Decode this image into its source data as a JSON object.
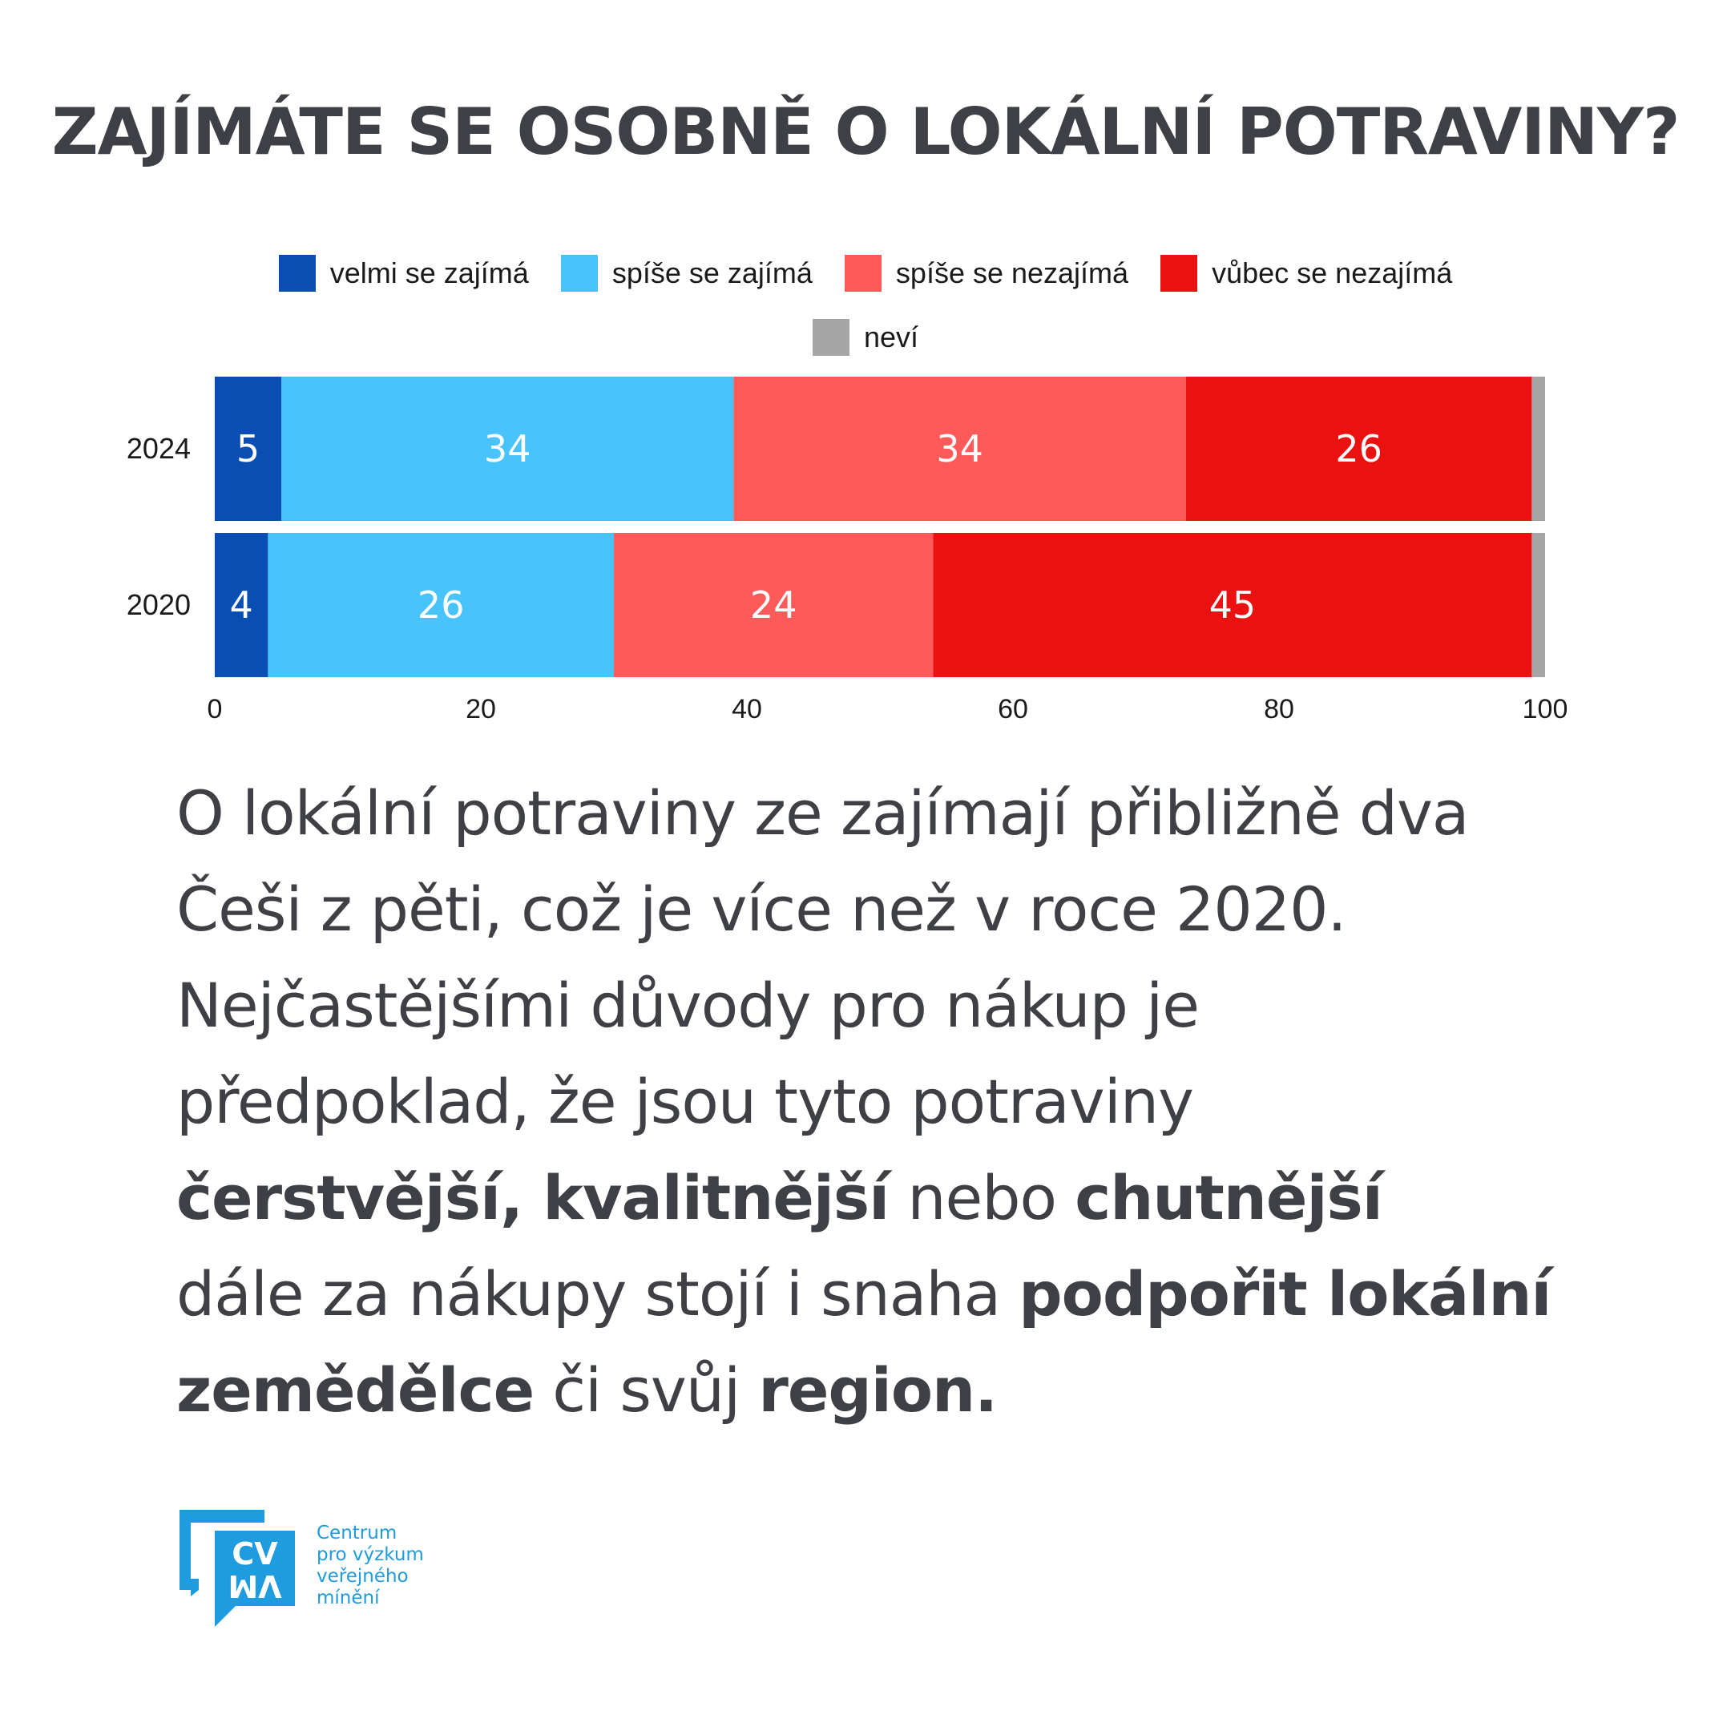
{
  "title": "ZAJÍMÁTE SE OSOBNĚ O LOKÁLNÍ POTRAVINY?",
  "chart_data": {
    "type": "bar",
    "orientation": "horizontal",
    "stacked": true,
    "categories": [
      "2024",
      "2020"
    ],
    "series": [
      {
        "name": "velmi se zajímá",
        "color": "#0a4db3",
        "values": [
          5,
          4
        ]
      },
      {
        "name": "spíše se zajímá",
        "color": "#48c3fb",
        "values": [
          34,
          26
        ]
      },
      {
        "name": "spíše se nezajímá",
        "color": "#ff5a5a",
        "values": [
          34,
          24
        ]
      },
      {
        "name": "vůbec se nezajímá",
        "color": "#ea1111",
        "values": [
          26,
          45
        ]
      },
      {
        "name": "neví",
        "color": "#a6a6a6",
        "values": [
          1,
          1
        ]
      }
    ],
    "data_labels": [
      [
        "5",
        "34",
        "34",
        "26",
        ""
      ],
      [
        "4",
        "26",
        "24",
        "45",
        ""
      ]
    ],
    "xlim": [
      0,
      100
    ],
    "xticks": [
      "0",
      "20",
      "40",
      "60",
      "80",
      "100"
    ],
    "legend_position": "top"
  },
  "body": {
    "line1": "O lokální potraviny ze zajímají přibližně dva",
    "line2": "Češi z pěti, což je více než v roce 2020.",
    "line3": "Nejčastějšími důvody pro nákup je",
    "line4": "předpoklad, že jsou tyto potraviny",
    "bold1": "čerstvější",
    "sep1": ", ",
    "bold2": "kvalitnější",
    "mid1": " nebo ",
    "bold3": "chutnější",
    "line6a": "dále za nákupy stojí i snaha ",
    "bold4": "podpořit lokální",
    "bold5": "zemědělce",
    "mid2": " či svůj ",
    "bold6": "region."
  },
  "logo": {
    "mark_top": "CV",
    "mark_bottom": "VM",
    "line1": "Centrum",
    "line2": "pro výzkum",
    "line3": "veřejného",
    "line4": "mínění",
    "color": "#1f9be0"
  }
}
